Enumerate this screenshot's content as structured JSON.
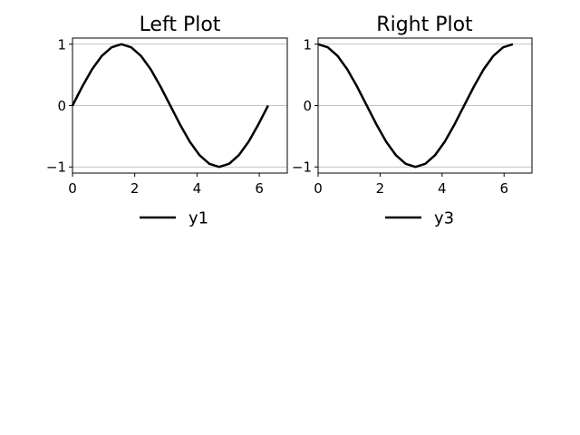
{
  "chart_data": [
    {
      "type": "line",
      "title": "Left Plot",
      "xlabel": "",
      "ylabel": "",
      "xlim": [
        0,
        6.9
      ],
      "ylim": [
        -1.1,
        1.1
      ],
      "x_ticks": [
        0,
        2,
        4,
        6
      ],
      "x_tick_labels": [
        "0",
        "2",
        "4",
        "6"
      ],
      "y_ticks": [
        -1,
        0,
        1
      ],
      "y_tick_labels": [
        "−1",
        "0",
        "1"
      ],
      "grid": "horizontal",
      "legend": {
        "placement": "below",
        "entries": [
          "y1"
        ]
      },
      "series": [
        {
          "name": "y1",
          "color": "#000000",
          "x": [
            0,
            0.314,
            0.628,
            0.942,
            1.257,
            1.571,
            1.885,
            2.199,
            2.513,
            2.827,
            3.142,
            3.456,
            3.77,
            4.084,
            4.398,
            4.712,
            5.027,
            5.341,
            5.655,
            5.969,
            6.283
          ],
          "y": [
            0,
            0.31,
            0.59,
            0.81,
            0.95,
            1.0,
            0.95,
            0.81,
            0.59,
            0.31,
            0,
            -0.31,
            -0.59,
            -0.81,
            -0.95,
            -1.0,
            -0.95,
            -0.81,
            -0.59,
            -0.31,
            0
          ]
        }
      ]
    },
    {
      "type": "line",
      "title": "Right Plot",
      "xlabel": "",
      "ylabel": "",
      "xlim": [
        0,
        6.9
      ],
      "ylim": [
        -1.1,
        1.1
      ],
      "x_ticks": [
        0,
        2,
        4,
        6
      ],
      "x_tick_labels": [
        "0",
        "2",
        "4",
        "6"
      ],
      "y_ticks": [
        -1,
        0,
        1
      ],
      "y_tick_labels": [
        "−1",
        "0",
        "1"
      ],
      "grid": "horizontal",
      "legend": {
        "placement": "below",
        "entries": [
          "y3"
        ]
      },
      "series": [
        {
          "name": "y3",
          "color": "#000000",
          "x": [
            0,
            0.314,
            0.628,
            0.942,
            1.257,
            1.571,
            1.885,
            2.199,
            2.513,
            2.827,
            3.142,
            3.456,
            3.77,
            4.084,
            4.398,
            4.712,
            5.027,
            5.341,
            5.655,
            5.969,
            6.283
          ],
          "y": [
            1.0,
            0.95,
            0.81,
            0.59,
            0.31,
            0,
            -0.31,
            -0.59,
            -0.81,
            -0.95,
            -1.0,
            -0.95,
            -0.81,
            -0.59,
            -0.31,
            0,
            0.31,
            0.59,
            0.81,
            0.95,
            1.0
          ]
        }
      ]
    }
  ]
}
